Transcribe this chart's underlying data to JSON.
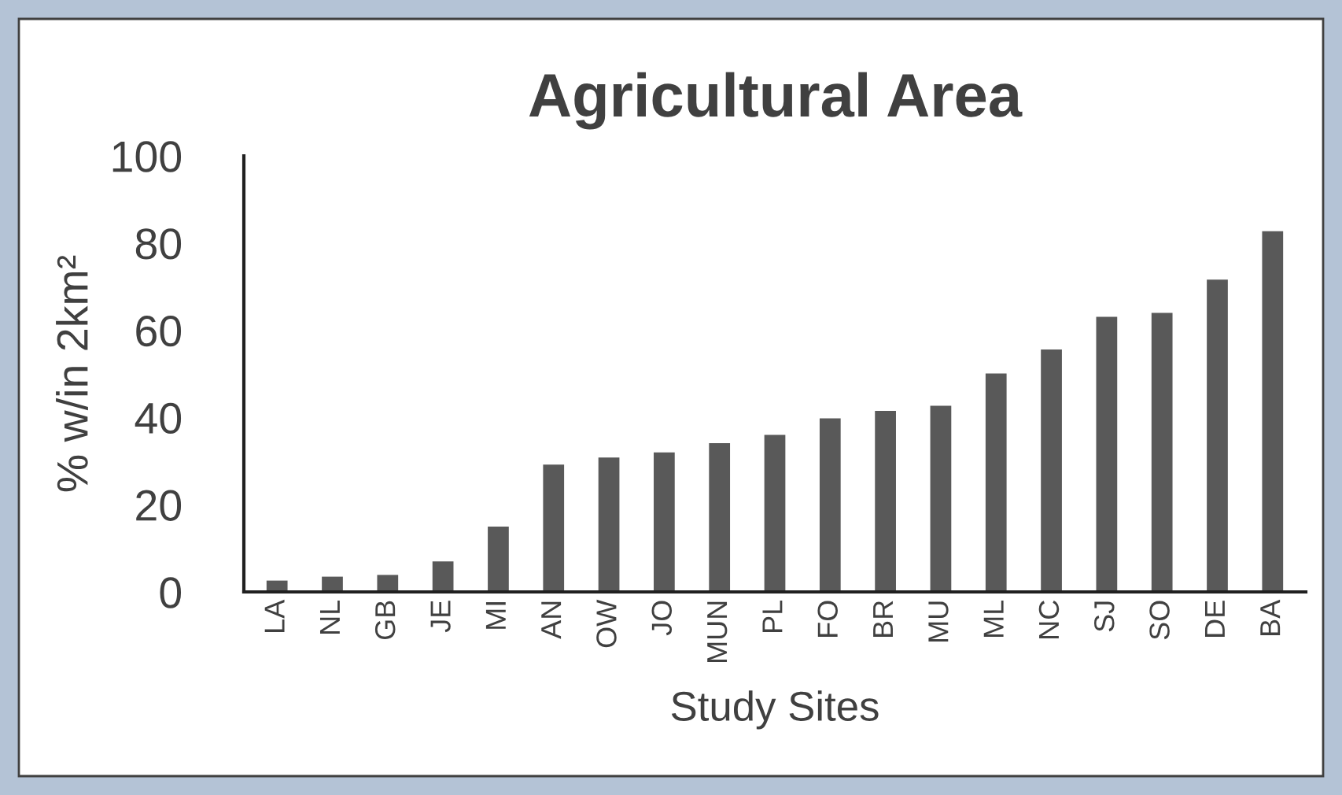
{
  "chart_data": {
    "type": "bar",
    "title": "Agricultural Area",
    "xlabel": "Study Sites",
    "ylabel": "% w/in 2km²",
    "categories": [
      "LA",
      "NL",
      "GB",
      "JE",
      "MI",
      "AN",
      "OW",
      "JO",
      "MUN",
      "PL",
      "FO",
      "BR",
      "MU",
      "ML",
      "NC",
      "SJ",
      "SO",
      "DE",
      "BA"
    ],
    "values": [
      2.6,
      3.5,
      3.9,
      7.0,
      15.0,
      29.2,
      30.8,
      32.0,
      34.1,
      36.0,
      39.8,
      41.5,
      42.7,
      50.1,
      55.6,
      63.1,
      64.0,
      71.6,
      82.7
    ],
    "color": "#595959",
    "ylim": [
      0,
      100
    ],
    "yticks": [
      0,
      20,
      40,
      60,
      80,
      100
    ],
    "grid": false,
    "legend": false
  }
}
